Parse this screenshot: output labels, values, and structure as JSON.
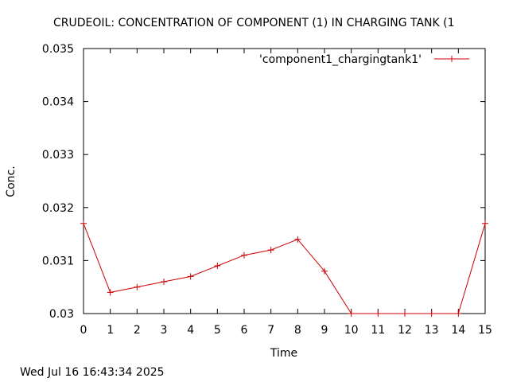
{
  "chart_data": {
    "type": "line",
    "title": "CRUDEOIL:   CONCENTRATION OF COMPONENT (1) IN CHARGING TANK (1",
    "xlabel": "Time",
    "ylabel": "Conc.",
    "xlim": [
      0,
      15
    ],
    "ylim": [
      0.03,
      0.035
    ],
    "x_ticks": [
      "0",
      "1",
      "2",
      "3",
      "4",
      "5",
      "6",
      "7",
      "8",
      "9",
      "10",
      "11",
      "12",
      "13",
      "14",
      "15"
    ],
    "y_ticks": [
      "0.03",
      "0.031",
      "0.032",
      "0.033",
      "0.034",
      "0.035"
    ],
    "grid": false,
    "legend_position": "top-right",
    "series": [
      {
        "name": "'component1_chargingtank1'",
        "color": "#cc0000",
        "marker": "plus",
        "x": [
          0,
          1,
          2,
          3,
          4,
          5,
          6,
          7,
          8,
          9,
          10,
          11,
          12,
          13,
          14,
          15
        ],
        "y": [
          0.0317,
          0.0304,
          0.0305,
          0.0306,
          0.0307,
          0.0309,
          0.0311,
          0.0312,
          0.0314,
          0.0308,
          0.03,
          0.03,
          0.03,
          0.03,
          0.03,
          0.0317
        ]
      }
    ]
  },
  "footer": {
    "timestamp": "Wed Jul 16 16:43:34 2025"
  }
}
